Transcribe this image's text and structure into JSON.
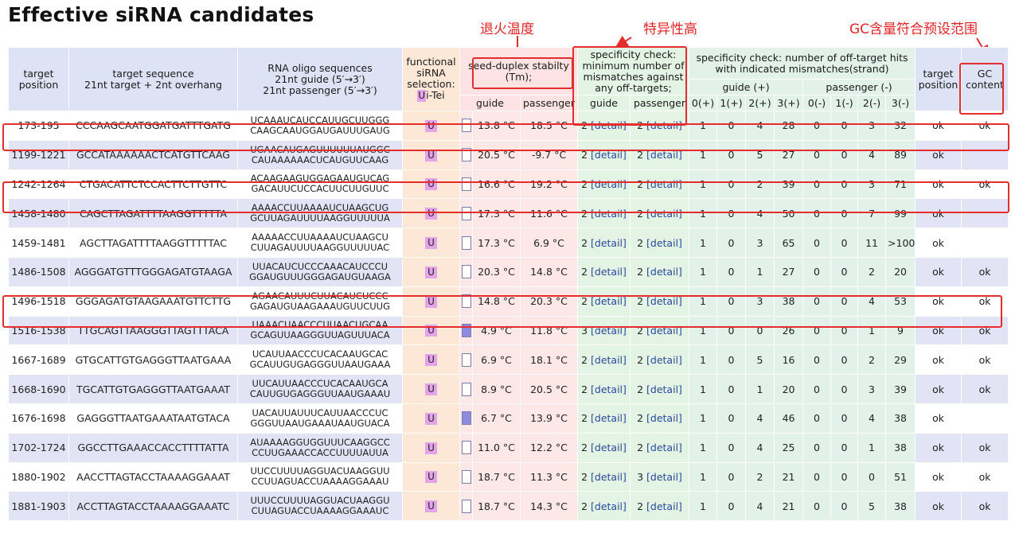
{
  "title": "Effective siRNA candidates",
  "notes": {
    "annealing": "退火温度",
    "specificity": "特异性高",
    "gc_range": "GC含量符合预设范围"
  },
  "headers": {
    "target_position": "target position",
    "target_sequence_1": "target sequence",
    "target_sequence_2": "21nt target + 2nt overhang",
    "oligo_1": "RNA oligo sequences",
    "oligo_2": "21nt guide (5′→3′)",
    "oligo_3": "21nt passenger (5′→3′)",
    "functional": "functional siRNA selection:",
    "functional_u": "U",
    "functional_rest": "i-Tei",
    "seed": "seed-duplex stabilty (Tm);",
    "specificity": "specificity check: minimum number of mismatches against any off-targets;",
    "hits": "specificity check: number of off-target hits with indicated mismatches(strand)",
    "guide_plus": "guide (+)",
    "passenger_minus": "passenger (-)",
    "target_position_2": "target position",
    "gc_content": "GC content",
    "guide": "guide",
    "passenger": "passenger",
    "m0p": "0(+)",
    "m1p": "1(+)",
    "m2p": "2(+)",
    "m3p": "3(+)",
    "m0m": "0(-)",
    "m1m": "1(-)",
    "m2m": "2(-)",
    "m3m": "3(-)"
  },
  "colors": {
    "highlight_box": "#e52d2d",
    "row_alt": "#e2e4f6",
    "func_bg": "#fde7d6",
    "tm_bg": "#fde7e7",
    "spec_bg": "#e4f4e4",
    "u_badge": "#e5a4ea",
    "link": "#2a4a9a"
  },
  "rows": [
    {
      "pos": "173-195",
      "seq": "CCCAAGCAATGGATGATTTGATG",
      "guide": "UCAAAUCAUCCAUUGCUUGGG",
      "passenger": "CAAGCAAUGGAUGAUUUGAUG",
      "func": "U",
      "bar": "none",
      "tm_guide": "13.8 °C",
      "tm_pass": "18.5 °C",
      "spec_guide": "2",
      "spec_pass": "2",
      "detail": "[detail]",
      "hits": [
        "1",
        "0",
        "4",
        "28",
        "0",
        "0",
        "3",
        "32"
      ],
      "target_ok": "ok",
      "gc": "ok"
    },
    {
      "pos": "1199-1221",
      "seq": "GCCATAAAAAACTCATGTTCAAG",
      "guide": "UGAACAUGAGUUUUUUAUGGC",
      "passenger": "CAUAAAAAACUCAUGUUCAAG",
      "func": "U",
      "bar": "none",
      "tm_guide": "20.5 °C",
      "tm_pass": "-9.7 °C",
      "spec_guide": "2",
      "spec_pass": "2",
      "detail": "[detail]",
      "hits": [
        "1",
        "0",
        "5",
        "27",
        "0",
        "0",
        "4",
        "89"
      ],
      "target_ok": "ok",
      "gc": ""
    },
    {
      "pos": "1242-1264",
      "seq": "CTGACATTCTCCACTTCTTGTTC",
      "guide": "ACAAGAAGUGGAGAAUGUCAG",
      "passenger": "GACAUUCUCCACUUCUUGUUC",
      "func": "U",
      "bar": "none",
      "tm_guide": "16.6 °C",
      "tm_pass": "19.2 °C",
      "spec_guide": "2",
      "spec_pass": "2",
      "detail": "[detail]",
      "hits": [
        "1",
        "0",
        "2",
        "39",
        "0",
        "0",
        "3",
        "71"
      ],
      "target_ok": "ok",
      "gc": "ok"
    },
    {
      "pos": "1458-1480",
      "seq": "CAGCTTAGATTTTAAGGTTTTTA",
      "guide": "AAAACCUUAAAAUCUAAGCUG",
      "passenger": "GCUUAGAUUUUAAGGUUUUUA",
      "func": "U",
      "bar": "none",
      "tm_guide": "17.3 °C",
      "tm_pass": "11.6 °C",
      "spec_guide": "2",
      "spec_pass": "2",
      "detail": "[detail]",
      "hits": [
        "1",
        "0",
        "4",
        "50",
        "0",
        "0",
        "7",
        "99"
      ],
      "target_ok": "ok",
      "gc": ""
    },
    {
      "pos": "1459-1481",
      "seq": "AGCTTAGATTTTAAGGTTTTTAC",
      "guide": "AAAAACCUUAAAAUCUAAGCU",
      "passenger": "CUUAGAUUUUAAGGUUUUUAC",
      "func": "U",
      "bar": "none",
      "tm_guide": "17.3 °C",
      "tm_pass": "6.9 °C",
      "spec_guide": "2",
      "spec_pass": "2",
      "detail": "[detail]",
      "hits": [
        "1",
        "0",
        "3",
        "65",
        "0",
        "0",
        "11",
        ">100"
      ],
      "target_ok": "ok",
      "gc": ""
    },
    {
      "pos": "1486-1508",
      "seq": "AGGGATGTTTGGGAGATGTAAGA",
      "guide": "UUACAUCUCCCAAACAUCCCU",
      "passenger": "GGAUGUUUGGGAGAUGUAAGA",
      "func": "U",
      "bar": "none",
      "tm_guide": "20.3 °C",
      "tm_pass": "14.8 °C",
      "spec_guide": "2",
      "spec_pass": "2",
      "detail": "[detail]",
      "hits": [
        "1",
        "0",
        "1",
        "27",
        "0",
        "0",
        "2",
        "20"
      ],
      "target_ok": "ok",
      "gc": "ok"
    },
    {
      "pos": "1496-1518",
      "seq": "GGGAGATGTAAGAAATGTTCTTG",
      "guide": "AGAACAUUUCUUACAUCUCCC",
      "passenger": "GAGAUGUAAGAAAUGUUCUUG",
      "func": "U",
      "bar": "none",
      "tm_guide": "14.8 °C",
      "tm_pass": "20.3 °C",
      "spec_guide": "2",
      "spec_pass": "2",
      "detail": "[detail]",
      "hits": [
        "1",
        "0",
        "3",
        "38",
        "0",
        "0",
        "4",
        "53"
      ],
      "target_ok": "ok",
      "gc": "ok"
    },
    {
      "pos": "1516-1538",
      "seq": "TTGCAGTTAAGGGTTAGTTTACA",
      "guide": "UAAACUAACCCUUAACUGCAA",
      "passenger": "GCAGUUAAGGGUUAGUUUACA",
      "func": "U",
      "bar": "dark",
      "tm_guide": "4.9 °C",
      "tm_pass": "11.8 °C",
      "spec_guide": "3",
      "spec_pass": "2",
      "detail": "[detail]",
      "hits": [
        "1",
        "0",
        "0",
        "26",
        "0",
        "0",
        "1",
        "9"
      ],
      "target_ok": "ok",
      "gc": "ok"
    },
    {
      "pos": "1667-1689",
      "seq": "GTGCATTGTGAGGGTTAATGAAA",
      "guide": "UCAUUAACCCUCACAAUGCAC",
      "passenger": "GCAUUGUGAGGGUUAAUGAAA",
      "func": "U",
      "bar": "none",
      "tm_guide": "6.9 °C",
      "tm_pass": "18.1 °C",
      "spec_guide": "2",
      "spec_pass": "2",
      "detail": "[detail]",
      "hits": [
        "1",
        "0",
        "5",
        "16",
        "0",
        "0",
        "2",
        "29"
      ],
      "target_ok": "ok",
      "gc": "ok"
    },
    {
      "pos": "1668-1690",
      "seq": "TGCATTGTGAGGGTTAATGAAAT",
      "guide": "UUCAUUAACCCUCACAAUGCA",
      "passenger": "CAUUGUGAGGGUUAAUGAAAU",
      "func": "U",
      "bar": "none",
      "tm_guide": "8.9 °C",
      "tm_pass": "20.5 °C",
      "spec_guide": "2",
      "spec_pass": "2",
      "detail": "[detail]",
      "hits": [
        "1",
        "0",
        "1",
        "20",
        "0",
        "0",
        "3",
        "39"
      ],
      "target_ok": "ok",
      "gc": "ok"
    },
    {
      "pos": "1676-1698",
      "seq": "GAGGGTTAATGAAATAATGTACA",
      "guide": "UACAUUAUUUCAUUAACCCUC",
      "passenger": "GGGUUAAUGAAAUAAUGUACA",
      "func": "U",
      "bar": "dark",
      "tm_guide": "6.7 °C",
      "tm_pass": "13.9 °C",
      "spec_guide": "2",
      "spec_pass": "2",
      "detail": "[detail]",
      "hits": [
        "1",
        "0",
        "4",
        "46",
        "0",
        "0",
        "4",
        "38"
      ],
      "target_ok": "ok",
      "gc": ""
    },
    {
      "pos": "1702-1724",
      "seq": "GGCCTTGAAACCACCTTTTATTA",
      "guide": "AUAAAAGGUGGUUUCAAGGCC",
      "passenger": "CCUUGAAACCACCUUUUAUUA",
      "func": "U",
      "bar": "none",
      "tm_guide": "11.0 °C",
      "tm_pass": "12.2 °C",
      "spec_guide": "2",
      "spec_pass": "2",
      "detail": "[detail]",
      "hits": [
        "1",
        "0",
        "4",
        "25",
        "0",
        "0",
        "1",
        "38"
      ],
      "target_ok": "ok",
      "gc": "ok"
    },
    {
      "pos": "1880-1902",
      "seq": "AACCTTAGTACCTAAAAGGAAAT",
      "guide": "UUCCUUUUAGGUACUAAGGUU",
      "passenger": "CCUUAGUACCUAAAAGGAAAU",
      "func": "U",
      "bar": "none",
      "tm_guide": "18.7 °C",
      "tm_pass": "11.3 °C",
      "spec_guide": "2",
      "spec_pass": "3",
      "detail": "[detail]",
      "hits": [
        "1",
        "0",
        "2",
        "21",
        "0",
        "0",
        "0",
        "51"
      ],
      "target_ok": "ok",
      "gc": "ok"
    },
    {
      "pos": "1881-1903",
      "seq": "ACCTTAGTACCTAAAAGGAAATC",
      "guide": "UUUCCUUUUAGGUACUAAGGU",
      "passenger": "CUUAGUACCUAAAAGGAAAUC",
      "func": "U",
      "bar": "none",
      "tm_guide": "18.7 °C",
      "tm_pass": "14.3 °C",
      "spec_guide": "2",
      "spec_pass": "2",
      "detail": "[detail]",
      "hits": [
        "1",
        "0",
        "4",
        "21",
        "0",
        "0",
        "5",
        "38"
      ],
      "target_ok": "ok",
      "gc": "ok"
    }
  ]
}
